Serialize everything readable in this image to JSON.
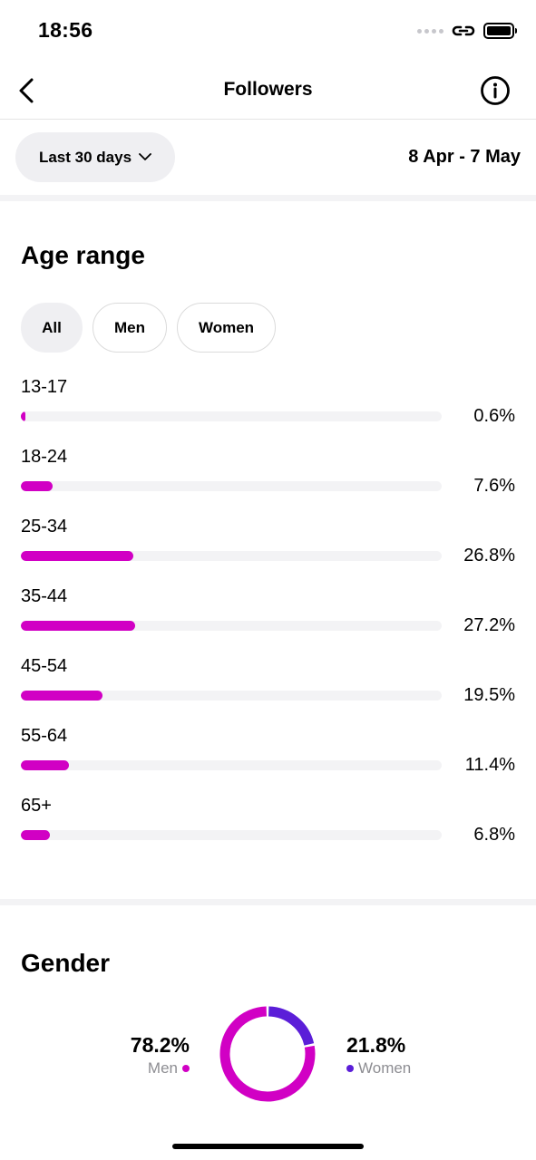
{
  "status_bar": {
    "time": "18:56"
  },
  "nav": {
    "title": "Followers"
  },
  "filter": {
    "range_label": "Last 30 days",
    "date_range": "8 Apr - 7 May"
  },
  "age_section": {
    "title": "Age range",
    "segments": [
      "All",
      "Men",
      "Women"
    ],
    "selected_segment": "All",
    "rows": [
      {
        "label": "13-17",
        "pct": "0.6%",
        "value": 0.6
      },
      {
        "label": "18-24",
        "pct": "7.6%",
        "value": 7.6
      },
      {
        "label": "25-34",
        "pct": "26.8%",
        "value": 26.8
      },
      {
        "label": "35-44",
        "pct": "27.2%",
        "value": 27.2
      },
      {
        "label": "45-54",
        "pct": "19.5%",
        "value": 19.5
      },
      {
        "label": "55-64",
        "pct": "11.4%",
        "value": 11.4
      },
      {
        "label": "65+",
        "pct": "6.8%",
        "value": 6.8
      }
    ],
    "bar_color": "#d100c4"
  },
  "gender_section": {
    "title": "Gender",
    "men": {
      "pct": "78.2%",
      "label": "Men",
      "value": 78.2,
      "color": "#d100c4"
    },
    "women": {
      "pct": "21.8%",
      "label": "Women",
      "value": 21.8,
      "color": "#5b1ed8"
    }
  }
}
